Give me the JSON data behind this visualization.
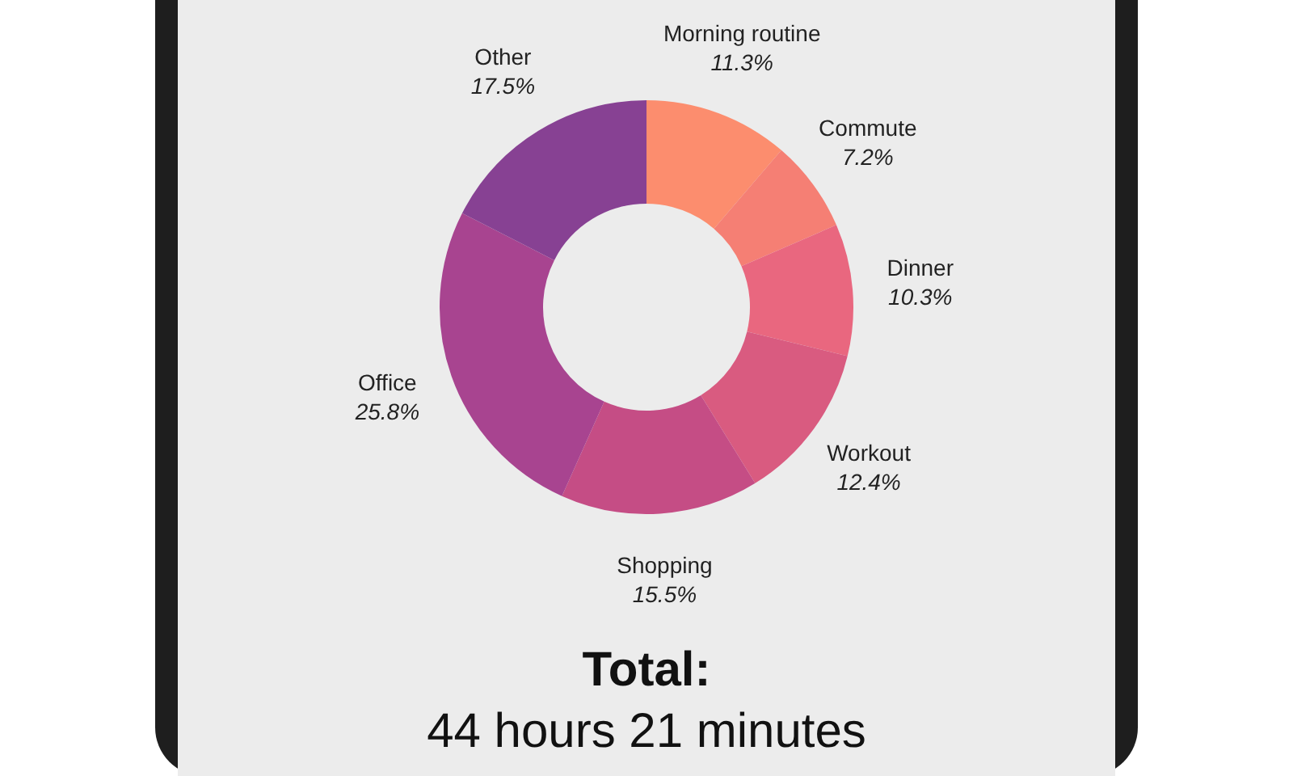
{
  "chart_data": {
    "type": "donut",
    "categories": [
      "Morning routine",
      "Commute",
      "Dinner",
      "Workout",
      "Shopping",
      "Office",
      "Other"
    ],
    "values": [
      11.3,
      7.2,
      10.3,
      12.4,
      15.5,
      25.8,
      17.5
    ],
    "value_labels": [
      "11.3%",
      "7.2%",
      "10.3%",
      "12.4%",
      "15.5%",
      "25.8%",
      "17.5%"
    ],
    "colors": [
      "#fc8d6e",
      "#f57f74",
      "#e9677f",
      "#d95b80",
      "#c54d85",
      "#a84490",
      "#874193"
    ],
    "annotations": [
      "Total:",
      "44 hours 21 minutes"
    ],
    "legend": false
  }
}
